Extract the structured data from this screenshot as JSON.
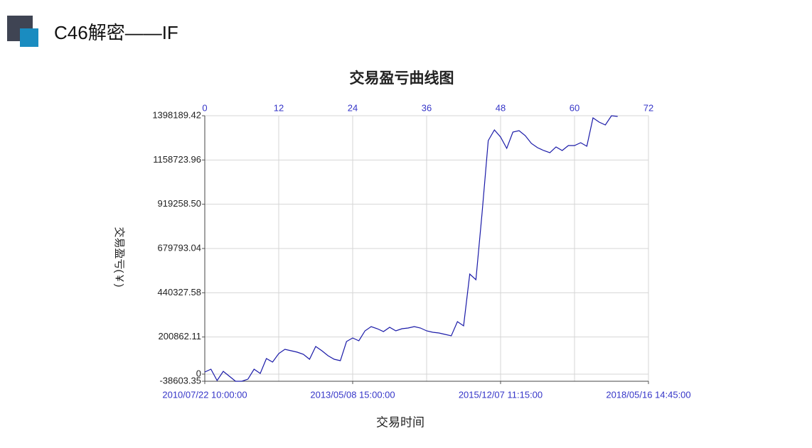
{
  "header": {
    "title": "C46解密——IF"
  },
  "chart_data": {
    "type": "line",
    "title": "交易盈亏曲线图",
    "xlabel": "交易时间",
    "ylabel": "交易盈亏(￥)",
    "color": "#1a1aa8",
    "grid": true,
    "x": [
      0,
      1,
      2,
      3,
      4,
      5,
      6,
      7,
      8,
      9,
      10,
      11,
      12,
      13,
      14,
      15,
      16,
      17,
      18,
      19,
      20,
      21,
      22,
      23,
      24,
      25,
      26,
      27,
      28,
      29,
      30,
      31,
      32,
      33,
      34,
      35,
      36,
      37,
      38,
      39,
      40,
      41,
      42,
      43,
      44,
      45,
      46,
      47,
      48,
      49,
      50,
      51,
      52,
      53,
      54,
      55,
      56,
      57,
      58,
      59,
      60,
      61,
      62,
      63,
      64,
      65,
      66,
      67
    ],
    "values": [
      11300,
      26700,
      -34800,
      15200,
      -11700,
      -38600,
      -38600,
      -27100,
      26700,
      3700,
      84300,
      65100,
      111200,
      134300,
      126600,
      118900,
      107400,
      80500,
      149600,
      126600,
      99700,
      80500,
      72800,
      176500,
      195700,
      180400,
      234200,
      257200,
      245700,
      230300,
      253400,
      234200,
      245700,
      249500,
      257200,
      249500,
      234200,
      226500,
      222600,
      214900,
      207300,
      284100,
      261100,
      541500,
      510800,
      871900,
      1263700,
      1321400,
      1282900,
      1221500,
      1309800,
      1317500,
      1290600,
      1248400,
      1225300,
      1210000,
      1198400,
      1229200,
      1210000,
      1236800,
      1236800,
      1252200,
      1233000,
      1386700,
      1363600,
      1348300,
      1398200,
      1394400
    ],
    "xlim": [
      0,
      72
    ],
    "xticks": [
      0,
      12,
      24,
      36,
      48,
      60,
      72
    ],
    "x2ticks": [
      {
        "value": 0,
        "label": "2010/07/22 10:00:00"
      },
      {
        "value": 24,
        "label": "2013/05/08 15:00:00"
      },
      {
        "value": 48,
        "label": "2015/12/07 11:15:00"
      },
      {
        "value": 72,
        "label": "2018/05/16 14:45:00"
      }
    ],
    "ylim": [
      -38603.35,
      1398189.42
    ],
    "yticks": [
      -38603.35,
      0,
      200862.11,
      440327.58,
      679793.04,
      {
        "value": 919258.5,
        "label": "919258.50"
      },
      1158723.96,
      1398189.42
    ]
  }
}
